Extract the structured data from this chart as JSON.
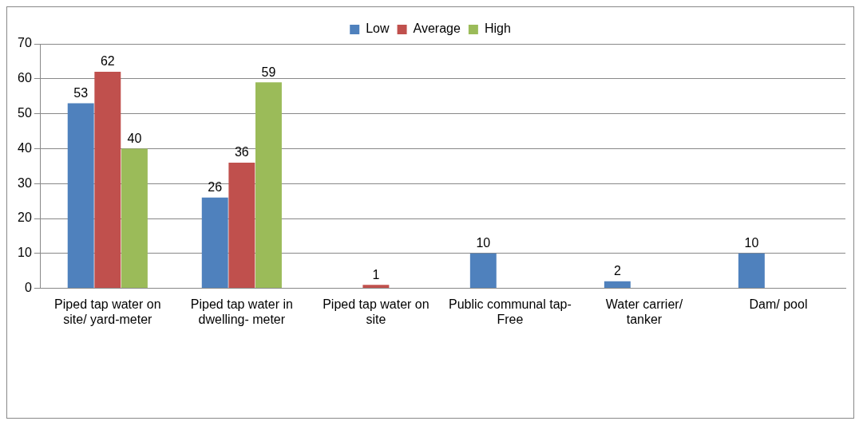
{
  "chart_data": {
    "type": "bar",
    "categories": [
      "Piped tap water on site/ yard-meter",
      "Piped tap water in dwelling- meter",
      "Piped tap water on site",
      "Public communal tap- Free",
      "Water carrier/ tanker",
      "Dam/ pool"
    ],
    "series": [
      {
        "name": "Low",
        "color": "#4f81bd",
        "values": [
          53,
          26,
          null,
          10,
          2,
          10
        ]
      },
      {
        "name": "Average",
        "color": "#c0504d",
        "values": [
          62,
          36,
          1,
          null,
          null,
          null
        ]
      },
      {
        "name": "High",
        "color": "#9bbb59",
        "values": [
          40,
          59,
          null,
          null,
          null,
          null
        ]
      }
    ],
    "ylim": [
      0,
      70
    ],
    "yticks": [
      0,
      10,
      20,
      30,
      40,
      50,
      60,
      70
    ],
    "grid": "y",
    "legend": "top",
    "data_labels": true
  }
}
